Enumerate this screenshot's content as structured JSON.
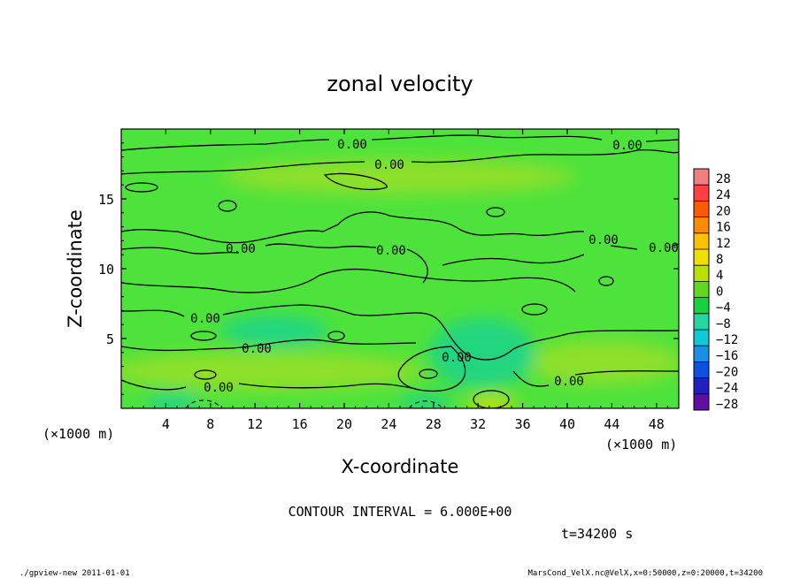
{
  "chart_data": {
    "type": "heatmap",
    "title": "zonal velocity",
    "xlabel": "X-coordinate",
    "ylabel": "Z-coordinate",
    "x_unit_left": "(×1000 m)",
    "x_unit_right": "(×1000 m)",
    "xlim": [
      0,
      50
    ],
    "ylim": [
      0,
      20
    ],
    "x_ticks": [
      4,
      8,
      12,
      16,
      20,
      24,
      28,
      32,
      36,
      40,
      44,
      48
    ],
    "y_ticks": [
      5,
      10,
      15
    ],
    "grid": false,
    "contour_interval_text": "CONTOUR INTERVAL = 6.000E+00",
    "time_text": "t=34200 s",
    "contour_labels": [
      "0.00",
      "0.00",
      "0.00",
      "0.00",
      "0.00",
      "0.00",
      "0.00",
      "0.00",
      "0.00",
      "0.00",
      "0.00",
      "0.00"
    ],
    "colorbar": {
      "levels": [
        28,
        24,
        20,
        16,
        12,
        8,
        4,
        0,
        -4,
        -8,
        -12,
        -16,
        -20,
        -24,
        -28
      ],
      "colors": [
        "#f08080",
        "#ff4040",
        "#ff5a00",
        "#ff8c00",
        "#ffc000",
        "#f0e000",
        "#b8e000",
        "#60d820",
        "#18d040",
        "#20d8a0",
        "#10c8d8",
        "#1890e8",
        "#1050e0",
        "#2020c0",
        "#6010a0"
      ]
    },
    "colors": {
      "field_base": "#4ee23c",
      "field_light": "#8ee02a",
      "field_cool": "#22d680"
    }
  },
  "footer": {
    "left": "./gpview-new  2011-01-01",
    "right": "MarsCond_VelX.nc@VelX,x=0:50000,z=0:20000,t=34200"
  }
}
